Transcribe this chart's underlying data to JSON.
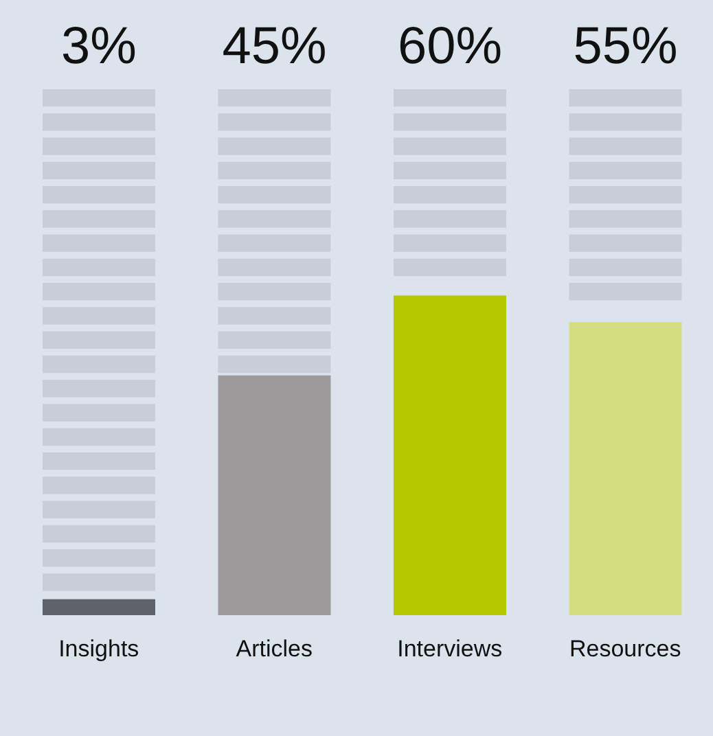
{
  "chart_data": {
    "type": "bar",
    "categories": [
      "Insights",
      "Articles",
      "Interviews",
      "Resources"
    ],
    "values": [
      3,
      45,
      60,
      55
    ],
    "value_labels": [
      "3%",
      "45%",
      "60%",
      "55%"
    ],
    "colors": [
      "#5f6369",
      "#9e9a9c",
      "#b5c900",
      "#d4de80"
    ],
    "tick_labels": "x",
    "legend": false,
    "grid": false
  }
}
